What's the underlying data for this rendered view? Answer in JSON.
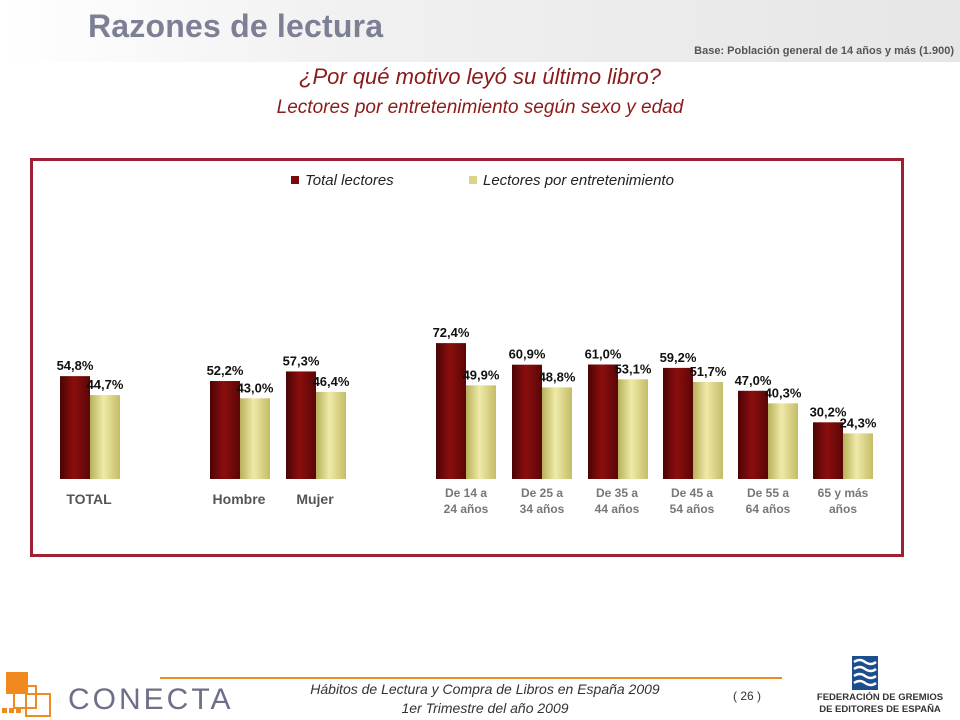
{
  "header": {
    "title": "Razones de lectura",
    "base_note": "Base: Población general de 14 años y más (1.900)"
  },
  "question": "¿Por qué motivo leyó su último libro?",
  "subtitle": "Lectores por entretenimiento según sexo y edad",
  "chart_data": {
    "type": "bar",
    "categories": [
      "TOTAL",
      "Hombre",
      "Mujer",
      "De 14 a 24 años",
      "De 25 a 34 años",
      "De 35 a 44 años",
      "De 45 a 54 años",
      "De 55 a 64 años",
      "65 y más años"
    ],
    "category_lines": [
      [
        "TOTAL"
      ],
      [
        "Hombre"
      ],
      [
        "Mujer"
      ],
      [
        "De 14 a",
        "24 años"
      ],
      [
        "De 25 a",
        "34 años"
      ],
      [
        "De 35 a",
        "44 años"
      ],
      [
        "De 45 a",
        "54 años"
      ],
      [
        "De 55 a",
        "64 años"
      ],
      [
        "65 y más",
        "años"
      ]
    ],
    "series": [
      {
        "name": "Total lectores",
        "values": [
          54.8,
          52.2,
          57.3,
          72.4,
          60.9,
          61.0,
          59.2,
          47.0,
          30.2
        ],
        "labels": [
          "54,8%",
          "52,2%",
          "57,3%",
          "72,4%",
          "60,9%",
          "61,0%",
          "59,2%",
          "47,0%",
          "30,2%"
        ],
        "color": "#7a0a0a"
      },
      {
        "name": "Lectores por entretenimiento",
        "values": [
          44.7,
          43.0,
          46.4,
          49.9,
          48.8,
          53.1,
          51.7,
          40.3,
          24.3
        ],
        "labels": [
          "44,7%",
          "43,0%",
          "46,4%",
          "49,9%",
          "48,8%",
          "53,1%",
          "51,7%",
          "40,3%",
          "24,3%"
        ],
        "color": "#d9d48a"
      }
    ],
    "legend_position": "top",
    "grid": false
  },
  "footer": {
    "line1": "Hábitos de Lectura y Compra de Libros en España 2009",
    "line2": "1er Trimestre del año 2009",
    "page": "( 26 )",
    "brand": "CONECTA",
    "federation_line1": "FEDERACIÓN DE GREMIOS",
    "federation_line2": "DE EDITORES DE ESPAÑA"
  }
}
